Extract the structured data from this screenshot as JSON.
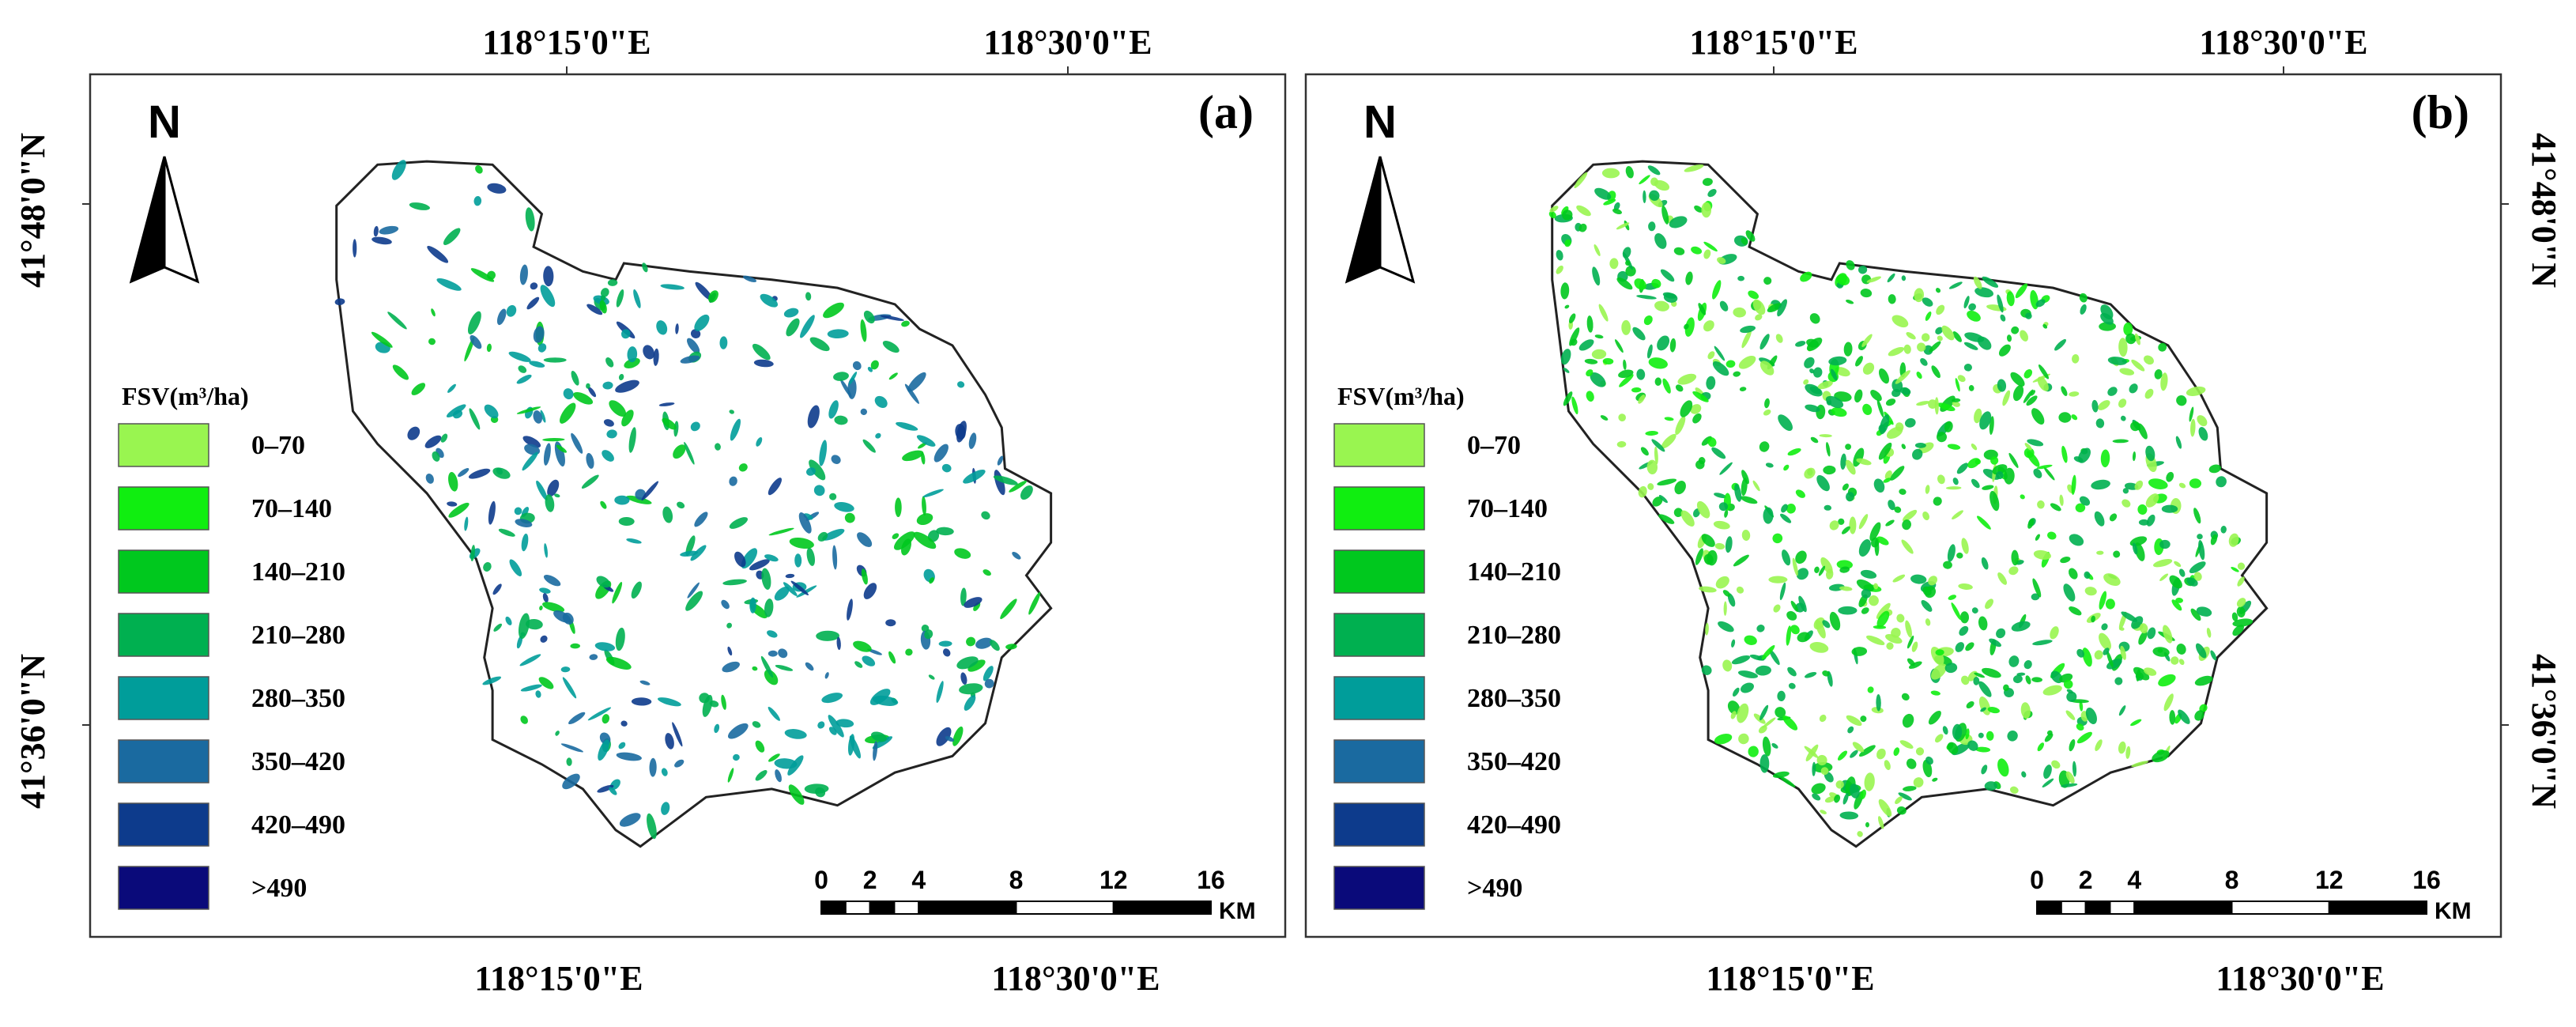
{
  "legend": {
    "title": "FSV(m³/ha)",
    "items": [
      {
        "label": "0–70",
        "color": "#99f550"
      },
      {
        "label": "70–140",
        "color": "#10ee10"
      },
      {
        "label": "140–210",
        "color": "#00c81e"
      },
      {
        "label": "210–280",
        "color": "#00b050"
      },
      {
        "label": "280–350",
        "color": "#009d9a"
      },
      {
        "label": "350–420",
        "color": "#1a6aa0"
      },
      {
        "label": "420–490",
        "color": "#0d3b8c"
      },
      {
        "label": ">490",
        "color": "#0a0a7a"
      }
    ]
  },
  "north": "N",
  "scale_bar": {
    "ticks": [
      0,
      2,
      4,
      8,
      12,
      16
    ],
    "unit": "KM"
  },
  "panels": [
    {
      "label": "(a)",
      "top_labels": [
        "118°15'0\"E",
        "118°30'0\"E"
      ],
      "bottom_labels": [
        "118°15'0\"E",
        "118°30'0\"E"
      ],
      "lat_labels": [
        "41°48'0\"N",
        "41°36'0\"N"
      ],
      "lat_side": "left"
    },
    {
      "label": "(b)",
      "top_labels": [
        "118°15'0\"E",
        "118°30'0\"E"
      ],
      "bottom_labels": [
        "118°15'0\"E",
        "118°30'0\"E"
      ],
      "lat_labels": [
        "41°48'0\"N",
        "41°36'0\"N"
      ],
      "lat_side": "right"
    }
  ]
}
